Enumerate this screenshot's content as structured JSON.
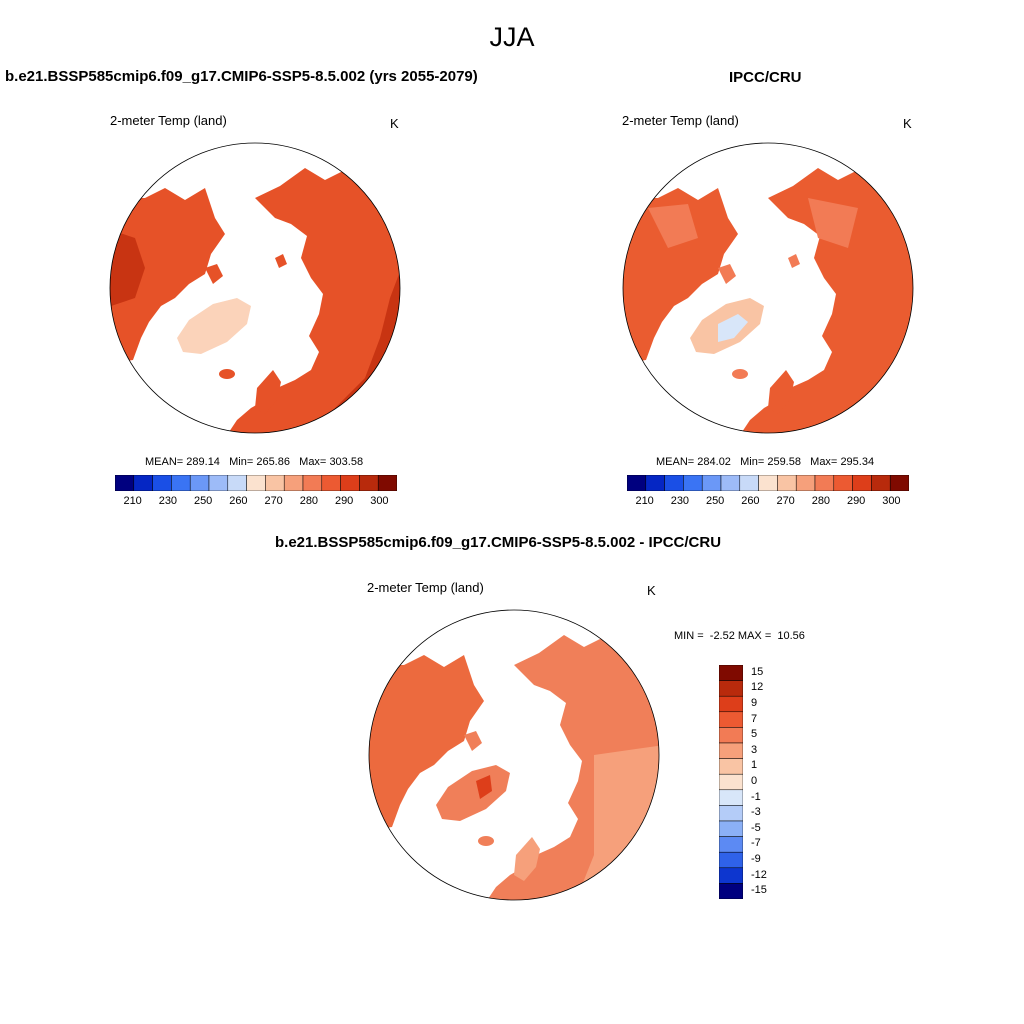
{
  "header": {
    "title": "JJA"
  },
  "colors": {
    "abs_scale": [
      "#00007f",
      "#0526c4",
      "#1a4fe6",
      "#3a74f4",
      "#6b98f7",
      "#9dbbf8",
      "#c8daf8",
      "#fbe2cf",
      "#f9c4a4",
      "#f6a07b",
      "#f27b55",
      "#ec5a32",
      "#dd3e1a",
      "#b82a0c",
      "#7f0a00"
    ],
    "diff_scale": [
      "#7f0a00",
      "#b82a0c",
      "#dd3e1a",
      "#ec5a32",
      "#f27b55",
      "#f6a07b",
      "#f9c4a4",
      "#fbe2cf",
      "#d8e6f9",
      "#b4ccf8",
      "#8bb0f6",
      "#5c8af3",
      "#2f62e9",
      "#0d36cf",
      "#00007f"
    ],
    "land_model": "#e65228",
    "land_obs": "#ea5c30",
    "land_diff": "#f07f59"
  },
  "panels": {
    "model": {
      "title": "b.e21.BSSP585cmip6.f09_g17.CMIP6-SSP5-8.5.002 (yrs 2055-2079)",
      "variable": "2-meter Temp (land)",
      "unit": "K",
      "stats": {
        "mean_label": "MEAN=",
        "mean": "289.14",
        "min_label": "Min=",
        "min": "265.86",
        "max_label": "Max=",
        "max": "303.58"
      },
      "colorbar_ticks": [
        "210",
        "230",
        "250",
        "260",
        "270",
        "280",
        "290",
        "300"
      ]
    },
    "obs": {
      "title": "IPCC/CRU",
      "variable": "2-meter Temp (land)",
      "unit": "K",
      "stats": {
        "mean_label": "MEAN=",
        "mean": "284.02",
        "min_label": "Min=",
        "min": "259.58",
        "max_label": "Max=",
        "max": "295.34"
      },
      "colorbar_ticks": [
        "210",
        "230",
        "250",
        "260",
        "270",
        "280",
        "290",
        "300"
      ]
    },
    "diff": {
      "title": "b.e21.BSSP585cmip6.f09_g17.CMIP6-SSP5-8.5.002 - IPCC/CRU",
      "variable": "2-meter Temp (land)",
      "unit": "K",
      "stats": {
        "min_label": "MIN =",
        "min": "-2.52",
        "max_label": "MAX =",
        "max": "10.56"
      },
      "colorbar_ticks": [
        "15",
        "12",
        "9",
        "7",
        "5",
        "3",
        "1",
        "0",
        "-1",
        "-3",
        "-5",
        "-7",
        "-9",
        "-12",
        "-15"
      ]
    }
  }
}
